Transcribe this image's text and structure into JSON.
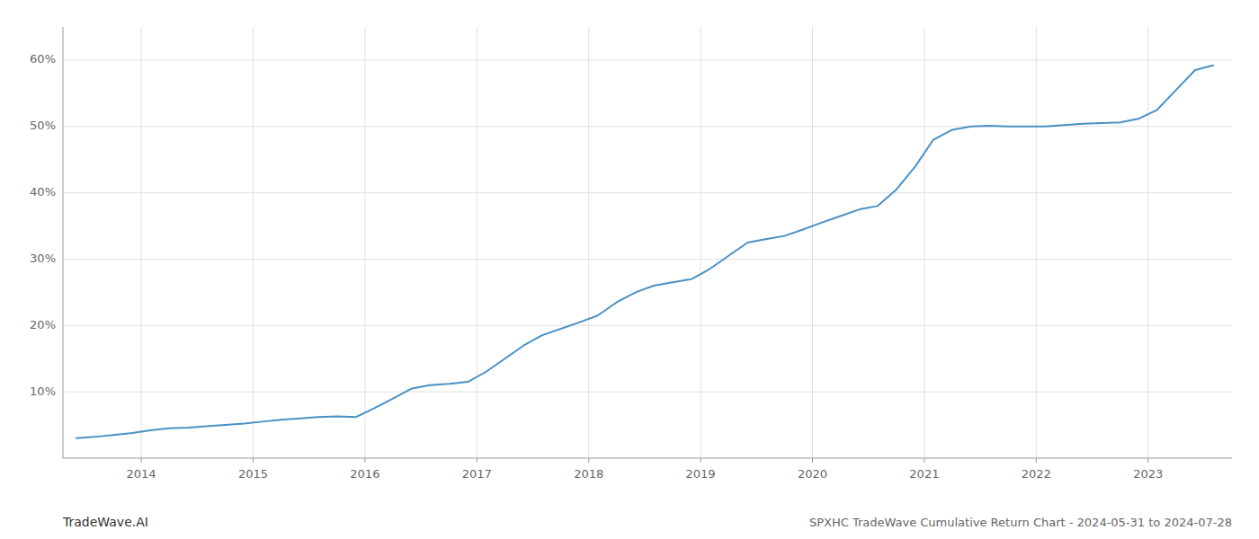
{
  "chart_data": {
    "type": "line",
    "title": "SPXHC TradeWave Cumulative Return Chart - 2024-05-31 to 2024-07-28",
    "annotations": [
      "TradeWave.AI"
    ],
    "color": "#4a90c4",
    "grid": true,
    "x": [
      2013.42,
      2013.58,
      2013.75,
      2013.92,
      2014.08,
      2014.25,
      2014.42,
      2014.58,
      2014.75,
      2014.92,
      2015.08,
      2015.25,
      2015.42,
      2015.58,
      2015.75,
      2015.92,
      2016.08,
      2016.25,
      2016.42,
      2016.58,
      2016.75,
      2016.92,
      2017.08,
      2017.25,
      2017.42,
      2017.58,
      2017.75,
      2017.92,
      2018.08,
      2018.25,
      2018.42,
      2018.58,
      2018.75,
      2018.92,
      2019.08,
      2019.25,
      2019.42,
      2019.58,
      2019.75,
      2019.92,
      2020.08,
      2020.25,
      2020.42,
      2020.58,
      2020.75,
      2020.92,
      2021.08,
      2021.25,
      2021.42,
      2021.58,
      2021.75,
      2021.92,
      2022.08,
      2022.25,
      2022.42,
      2022.58,
      2022.75,
      2022.92,
      2023.08,
      2023.25,
      2023.42,
      2023.58
    ],
    "values": [
      3.0,
      3.2,
      3.5,
      3.8,
      4.2,
      4.5,
      4.6,
      4.8,
      5.0,
      5.2,
      5.5,
      5.8,
      6.0,
      6.2,
      6.3,
      6.2,
      7.5,
      9.0,
      10.5,
      11.0,
      11.2,
      11.5,
      13.0,
      15.0,
      17.0,
      18.5,
      19.5,
      20.5,
      21.5,
      23.5,
      25.0,
      26.0,
      26.5,
      27.0,
      28.5,
      30.5,
      32.5,
      33.0,
      33.5,
      34.5,
      35.5,
      36.5,
      37.5,
      38.0,
      40.5,
      44.0,
      48.0,
      49.5,
      50.0,
      50.1,
      50.0,
      50.0,
      50.0,
      50.2,
      50.4,
      50.5,
      50.6,
      51.2,
      52.5,
      55.5,
      58.5,
      59.2
    ],
    "xlim": [
      2013.3,
      2023.75
    ],
    "ylim": [
      0,
      65
    ],
    "xticks": [
      2014,
      2015,
      2016,
      2017,
      2018,
      2019,
      2020,
      2021,
      2022,
      2023
    ],
    "yticks": [
      {
        "value": 10,
        "label": "10%"
      },
      {
        "value": 20,
        "label": "20%"
      },
      {
        "value": 30,
        "label": "30%"
      },
      {
        "value": 40,
        "label": "40%"
      },
      {
        "value": 50,
        "label": "50%"
      },
      {
        "value": 60,
        "label": "60%"
      }
    ]
  }
}
